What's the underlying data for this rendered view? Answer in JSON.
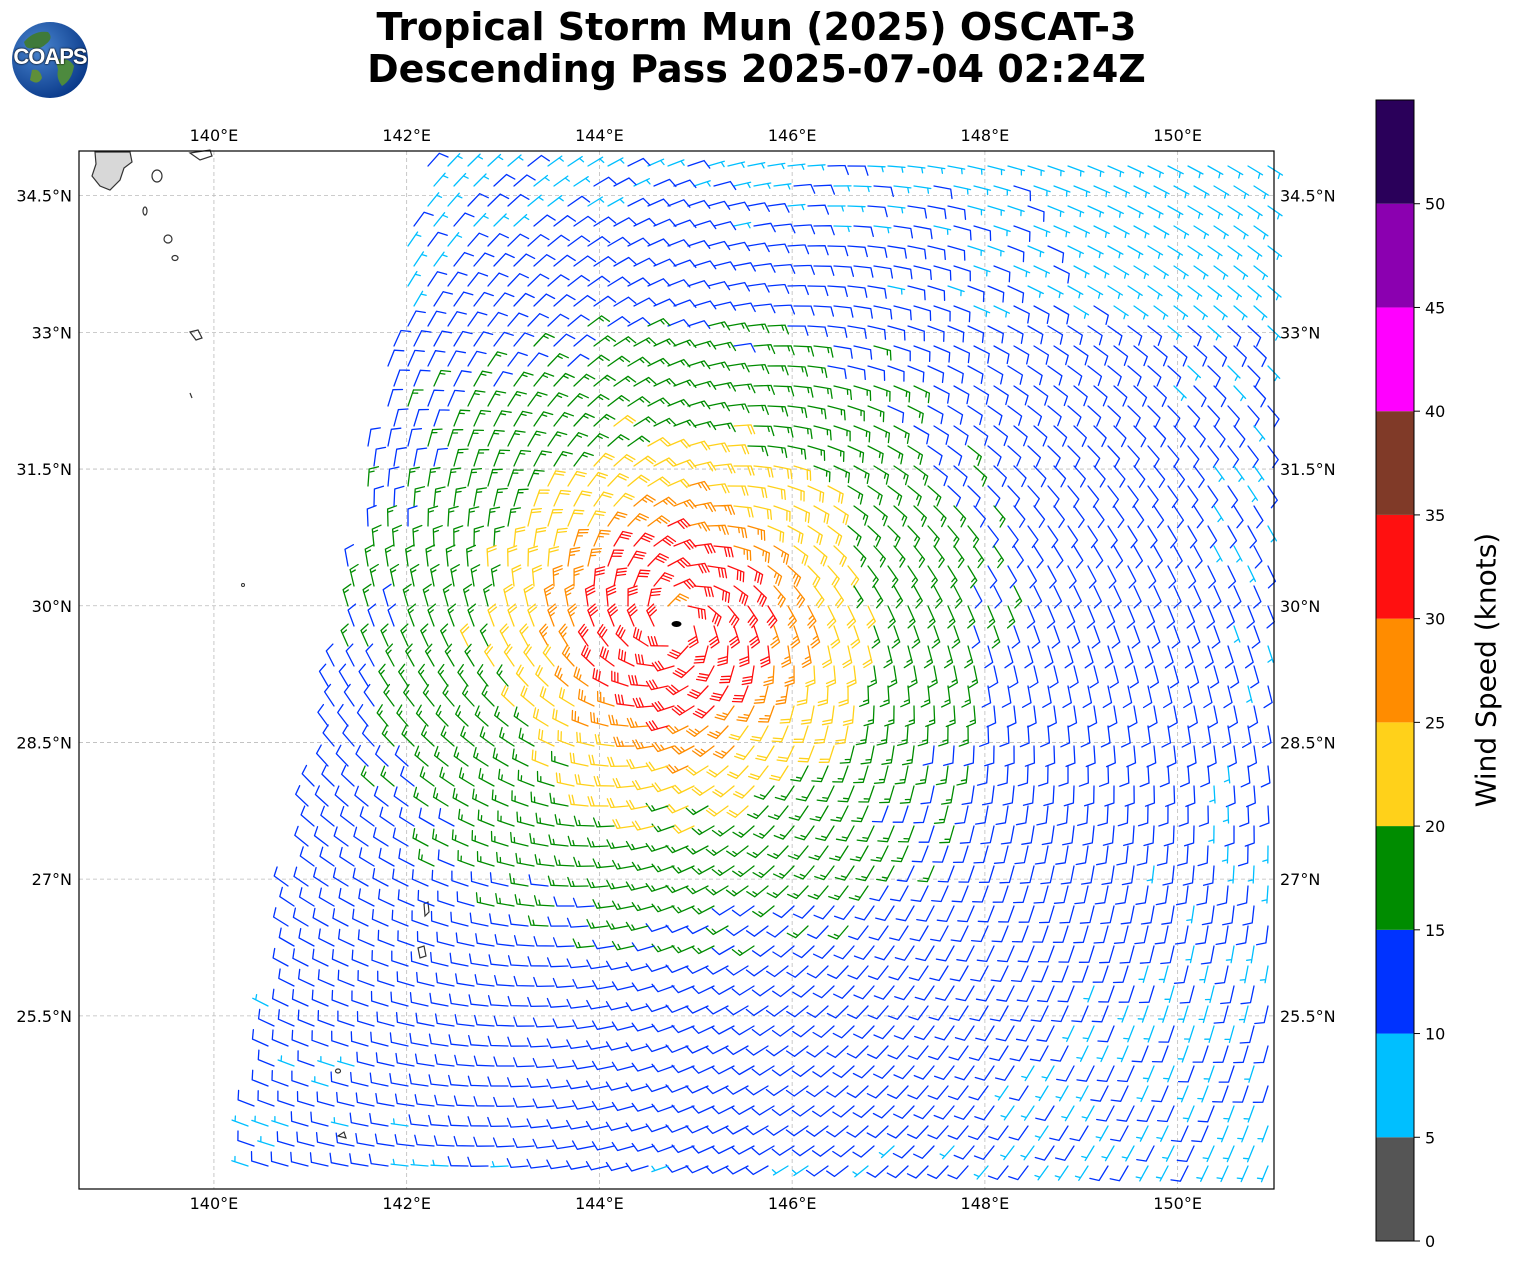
{
  "title": {
    "line1": "Tropical Storm Mun (2025) OSCAT-3",
    "line2": "Descending Pass 2025-07-04 02:24Z"
  },
  "logo": {
    "text": "COAPS",
    "icon": "globe-icon"
  },
  "map": {
    "lon_range": [
      138.6,
      151.0
    ],
    "lat_range": [
      23.6,
      34.99
    ],
    "lon_ticks": [
      "140°E",
      "142°E",
      "144°E",
      "146°E",
      "148°E",
      "150°E"
    ],
    "lon_tick_values": [
      140,
      142,
      144,
      146,
      148,
      150
    ],
    "lat_ticks": [
      "34.5°N",
      "33°N",
      "31.5°N",
      "30°N",
      "28.5°N",
      "27°N",
      "25.5°N"
    ],
    "lat_tick_values": [
      34.5,
      33,
      31.5,
      30,
      28.5,
      27,
      25.5
    ],
    "gridlines": true,
    "storm_center": {
      "lon": 144.8,
      "lat": 29.8
    },
    "max_wind_knots": 35
  },
  "colorbar": {
    "label": "Wind Speed (knots)",
    "ticks": [
      "0",
      "5",
      "10",
      "15",
      "20",
      "25",
      "30",
      "35",
      "40",
      "45",
      "50"
    ],
    "bins": [
      {
        "min": 0,
        "max": 5,
        "color": "#555555"
      },
      {
        "min": 5,
        "max": 10,
        "color": "#00bfff"
      },
      {
        "min": 10,
        "max": 15,
        "color": "#0033ff"
      },
      {
        "min": 15,
        "max": 20,
        "color": "#008c00"
      },
      {
        "min": 20,
        "max": 25,
        "color": "#ffd11a"
      },
      {
        "min": 25,
        "max": 30,
        "color": "#ff8c00"
      },
      {
        "min": 30,
        "max": 35,
        "color": "#ff1010"
      },
      {
        "min": 35,
        "max": 40,
        "color": "#803a28"
      },
      {
        "min": 40,
        "max": 45,
        "color": "#ff00ff"
      },
      {
        "min": 45,
        "max": 50,
        "color": "#8b00b0"
      },
      {
        "min": 50,
        "max": 55,
        "color": "#2a005a"
      }
    ]
  }
}
